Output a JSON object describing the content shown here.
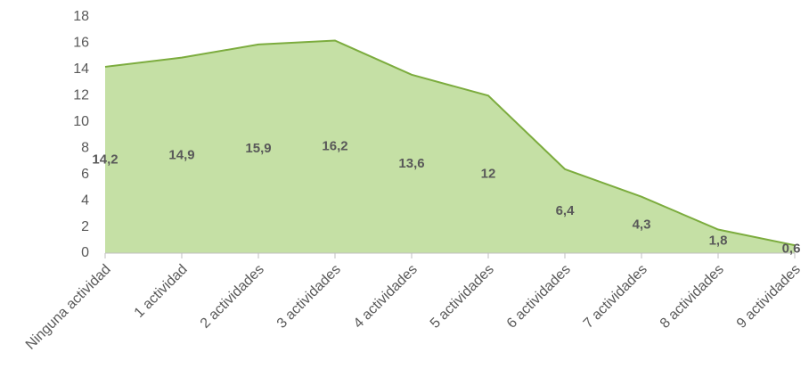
{
  "chart_data": {
    "type": "area",
    "categories": [
      "Ninguna actividad",
      "1 actividad",
      "2 actividades",
      "3 actividades",
      "4 actividades",
      "5 actividades",
      "6 actividades",
      "7 actividades",
      "8 actividades",
      "9 actividades"
    ],
    "values": [
      14.2,
      14.9,
      15.9,
      16.2,
      13.6,
      12,
      6.4,
      4.3,
      1.8,
      0.6
    ],
    "value_labels": [
      "14,2",
      "14,9",
      "15,9",
      "16,2",
      "13,6",
      "12",
      "6,4",
      "4,3",
      "1,8",
      "0,6"
    ],
    "color": "#c5e0a5",
    "line_color": "#7cac3e",
    "ylim": [
      0,
      18
    ],
    "yticks": [
      0,
      2,
      4,
      6,
      8,
      10,
      12,
      14,
      16,
      18
    ],
    "grid": false
  }
}
